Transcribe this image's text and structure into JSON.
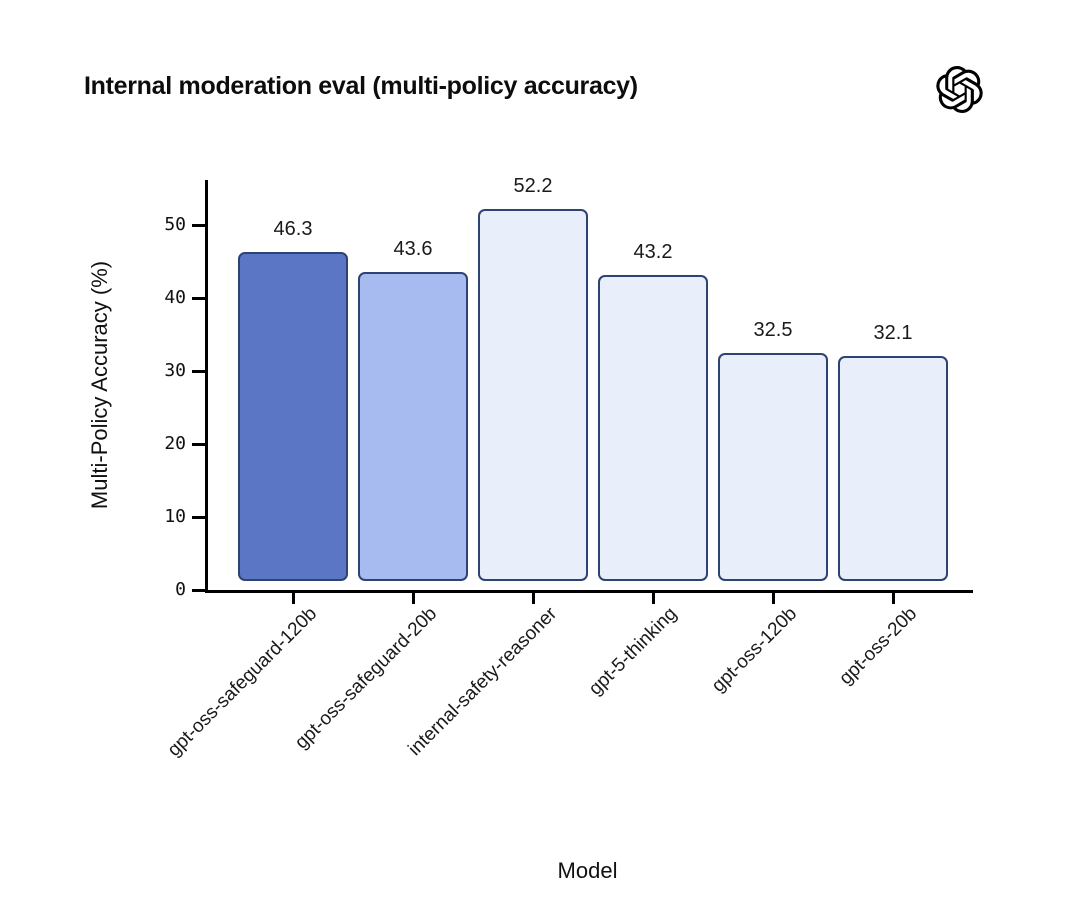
{
  "header": {
    "logo_icon": "openai-logo"
  },
  "chart_data": {
    "type": "bar",
    "title": "Internal moderation eval (multi-policy accuracy)",
    "xlabel": "Model",
    "ylabel": "Multi-Policy Accuracy (%)",
    "categories": [
      "gpt-oss-safeguard-120b",
      "gpt-oss-safeguard-20b",
      "internal-safety-reasoner",
      "gpt-5-thinking",
      "gpt-oss-120b",
      "gpt-oss-20b"
    ],
    "values": [
      46.3,
      43.6,
      52.2,
      43.2,
      32.5,
      32.1
    ],
    "value_labels": [
      "46.3",
      "43.6",
      "52.2",
      "43.2",
      "32.5",
      "32.1"
    ],
    "yticks": [
      0,
      10,
      20,
      30,
      40,
      50
    ],
    "ylim": [
      0,
      56
    ],
    "grid": false,
    "legend": null,
    "bar_colors": [
      "#5B76C5",
      "#A8BBF0",
      "#E9EEFB",
      "#E9EEFB",
      "#E9EEFB",
      "#E9EEFB"
    ],
    "bar_border_color": "#2E4372",
    "axis_color": "#000000",
    "title_color": "#0d0d0d"
  }
}
